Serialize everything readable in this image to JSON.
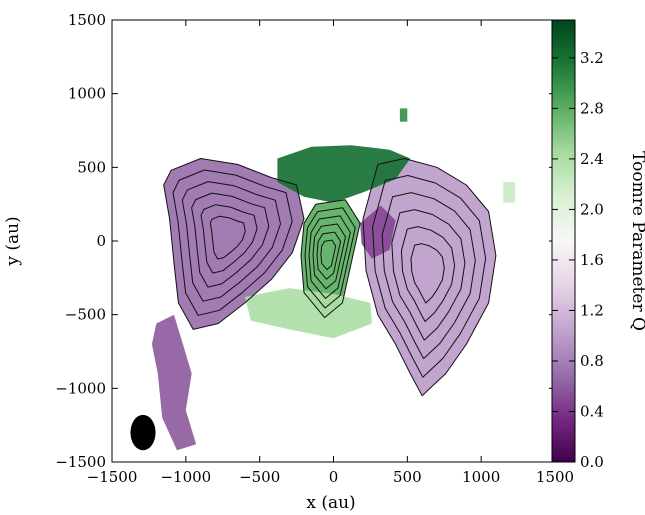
{
  "chart_data": {
    "type": "heatmap",
    "xlabel": "x (au)",
    "ylabel": "y (au)",
    "xlim": [
      -1500,
      1500
    ],
    "ylim": [
      -1500,
      1500
    ],
    "x_ticks": [
      "−1500",
      "−1000",
      "−500",
      "0",
      "500",
      "1000",
      "1500"
    ],
    "y_ticks": [
      "−1500",
      "−1000",
      "−500",
      "0",
      "500",
      "1000",
      "1500"
    ],
    "colorbar": {
      "label": "Toomre Parameter Q",
      "range": [
        0.0,
        3.5
      ],
      "ticks": [
        "0.0",
        "0.4",
        "0.8",
        "1.2",
        "1.6",
        "2.0",
        "2.4",
        "2.8",
        "3.2"
      ],
      "colormap": [
        "#40004b",
        "#762a83",
        "#9970ab",
        "#c2a5cf",
        "#e7d4e8",
        "#f7f7f7",
        "#d9f0d3",
        "#a6dba0",
        "#5aae61",
        "#1b7837",
        "#00441b"
      ]
    },
    "beam": {
      "x": -1290,
      "y": -1300,
      "major_au": 120,
      "minor_au": 85
    },
    "regions": [
      {
        "name": "west-lobe",
        "q": 0.7,
        "xy": [
          [
            -1100,
            480
          ],
          [
            -900,
            560
          ],
          [
            -650,
            520
          ],
          [
            -420,
            430
          ],
          [
            -250,
            380
          ],
          [
            -200,
            150
          ],
          [
            -280,
            -80
          ],
          [
            -420,
            -260
          ],
          [
            -600,
            -420
          ],
          [
            -780,
            -560
          ],
          [
            -950,
            -600
          ],
          [
            -1050,
            -420
          ],
          [
            -1080,
            -150
          ],
          [
            -1110,
            150
          ],
          [
            -1150,
            380
          ]
        ]
      },
      {
        "name": "east-lobe",
        "q": 1.0,
        "xy": [
          [
            300,
            520
          ],
          [
            480,
            560
          ],
          [
            700,
            500
          ],
          [
            900,
            380
          ],
          [
            1050,
            200
          ],
          [
            1100,
            -100
          ],
          [
            1050,
            -420
          ],
          [
            900,
            -700
          ],
          [
            760,
            -900
          ],
          [
            600,
            -1050
          ],
          [
            520,
            -900
          ],
          [
            420,
            -700
          ],
          [
            300,
            -500
          ],
          [
            220,
            -200
          ],
          [
            200,
            150
          ]
        ]
      },
      {
        "name": "central-north-high-q",
        "q": 3.2,
        "xy": [
          [
            -380,
            560
          ],
          [
            -150,
            640
          ],
          [
            120,
            650
          ],
          [
            380,
            620
          ],
          [
            520,
            560
          ],
          [
            420,
            420
          ],
          [
            200,
            330
          ],
          [
            0,
            260
          ],
          [
            -200,
            300
          ],
          [
            -380,
            400
          ]
        ]
      },
      {
        "name": "central-core-high-q",
        "q": 2.8,
        "xy": [
          [
            -120,
            250
          ],
          [
            80,
            280
          ],
          [
            180,
            120
          ],
          [
            120,
            -150
          ],
          [
            60,
            -420
          ],
          [
            -60,
            -520
          ],
          [
            -200,
            -350
          ],
          [
            -220,
            -100
          ],
          [
            -200,
            120
          ]
        ]
      },
      {
        "name": "south-high-q",
        "q": 2.4,
        "xy": [
          [
            -600,
            -380
          ],
          [
            -300,
            -320
          ],
          [
            0,
            -360
          ],
          [
            250,
            -420
          ],
          [
            260,
            -560
          ],
          [
            0,
            -660
          ],
          [
            -300,
            -600
          ],
          [
            -560,
            -540
          ]
        ]
      },
      {
        "name": "south-west-arc",
        "q": 0.6,
        "xy": [
          [
            -1200,
            -560
          ],
          [
            -1080,
            -500
          ],
          [
            -1020,
            -700
          ],
          [
            -960,
            -900
          ],
          [
            -1000,
            -1150
          ],
          [
            -930,
            -1380
          ],
          [
            -1060,
            -1420
          ],
          [
            -1160,
            -1200
          ],
          [
            -1190,
            -900
          ],
          [
            -1230,
            -700
          ]
        ]
      },
      {
        "name": "east-low-q-tongue",
        "q": 0.5,
        "xy": [
          [
            180,
            120
          ],
          [
            320,
            240
          ],
          [
            420,
            140
          ],
          [
            380,
            -60
          ],
          [
            260,
            -120
          ],
          [
            190,
            -20
          ]
        ]
      },
      {
        "name": "north-east-clump",
        "q": 3.0,
        "xy": [
          [
            450,
            900
          ],
          [
            500,
            900
          ],
          [
            500,
            810
          ],
          [
            450,
            810
          ]
        ]
      },
      {
        "name": "far-east-clump",
        "q": 2.2,
        "xy": [
          [
            1150,
            400
          ],
          [
            1230,
            400
          ],
          [
            1230,
            260
          ],
          [
            1150,
            260
          ]
        ]
      }
    ]
  }
}
